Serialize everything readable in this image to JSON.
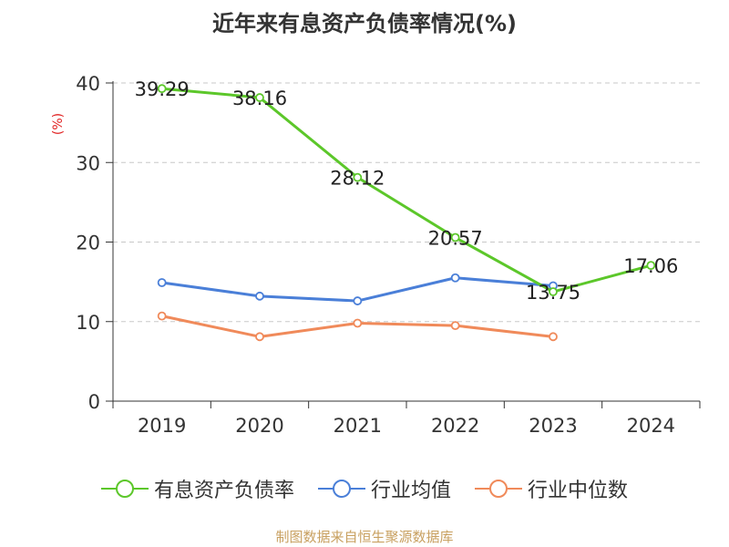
{
  "title": "近年来有息资产负债率情况(%)",
  "source": "制图数据来自恒生聚源数据库",
  "chart_data": {
    "type": "line",
    "title": "近年来有息资产负债率情况(%)",
    "ylabel": "(%)",
    "xlabel": "",
    "categories": [
      "2019",
      "2020",
      "2021",
      "2022",
      "2023",
      "2024"
    ],
    "ylim": [
      0,
      40
    ],
    "yticks": [
      0,
      10,
      20,
      30,
      40
    ],
    "grid": true,
    "legend_position": "bottom",
    "series": [
      {
        "name": "有息资产负债率",
        "color": "#5cc72a",
        "values": [
          39.29,
          38.16,
          28.12,
          20.57,
          13.75,
          17.06
        ],
        "labels": [
          "39.29",
          "38.16",
          "28.12",
          "20.57",
          "13.75",
          "17.06"
        ]
      },
      {
        "name": "行业均值",
        "color": "#4a7fd8",
        "values": [
          14.9,
          13.2,
          12.6,
          15.5,
          14.5,
          null
        ]
      },
      {
        "name": "行业中位数",
        "color": "#f08a5a",
        "values": [
          10.7,
          8.1,
          9.8,
          9.5,
          8.1,
          null
        ]
      }
    ]
  }
}
